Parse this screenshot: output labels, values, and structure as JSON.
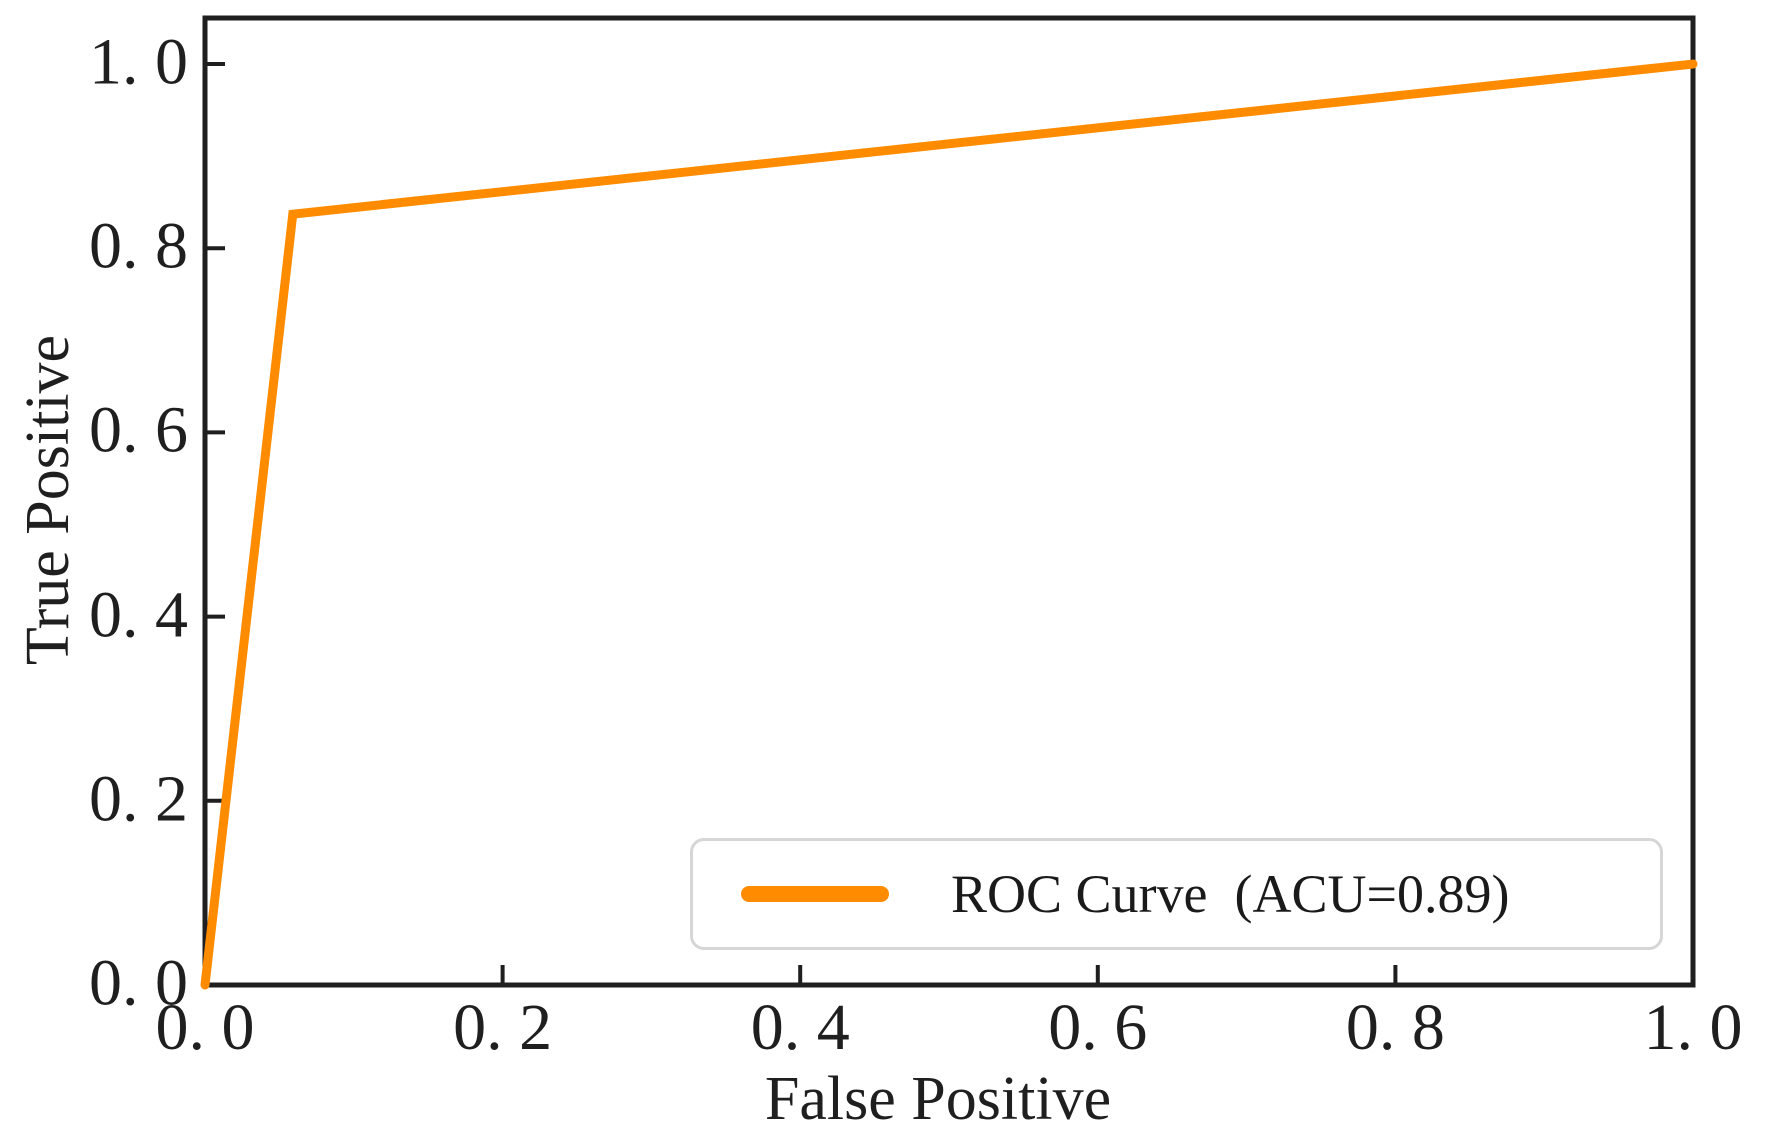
{
  "colors": {
    "curve": "#FF8C00",
    "axis": "#1f1f1f",
    "text": "#1f1f1f",
    "legend_border": "#d6d6d6",
    "background": "#ffffff"
  },
  "chart_data": {
    "type": "line",
    "title": "",
    "xlabel": "False Positive",
    "ylabel": "True Positive",
    "xlim": [
      0,
      1.0
    ],
    "ylim": [
      0,
      1.05
    ],
    "grid": false,
    "x_ticks": [
      0.0,
      0.2,
      0.4,
      0.6,
      0.8,
      1.0
    ],
    "y_ticks": [
      0.0,
      0.2,
      0.4,
      0.6,
      0.8,
      1.0
    ],
    "x_tick_labels": [
      "0. 0",
      "0. 2",
      "0. 4",
      "0. 6",
      "0. 8",
      "1. 0"
    ],
    "y_tick_labels": [
      "0. 0",
      "0. 2",
      "0. 4",
      "0. 6",
      "0. 8",
      "1. 0"
    ],
    "legend": {
      "position": "lower right",
      "entries": [
        {
          "label": "ROC Curve  (ACU=0.89)",
          "color": "#FF8C00"
        }
      ]
    },
    "series": [
      {
        "name": "ROC Curve",
        "auc_label": "ACU=0.89",
        "auc": 0.89,
        "color": "#FF8C00",
        "line_width": 9,
        "points": [
          [
            0.0,
            0.0
          ],
          [
            0.059,
            0.837
          ],
          [
            1.0,
            1.0
          ]
        ]
      }
    ]
  }
}
